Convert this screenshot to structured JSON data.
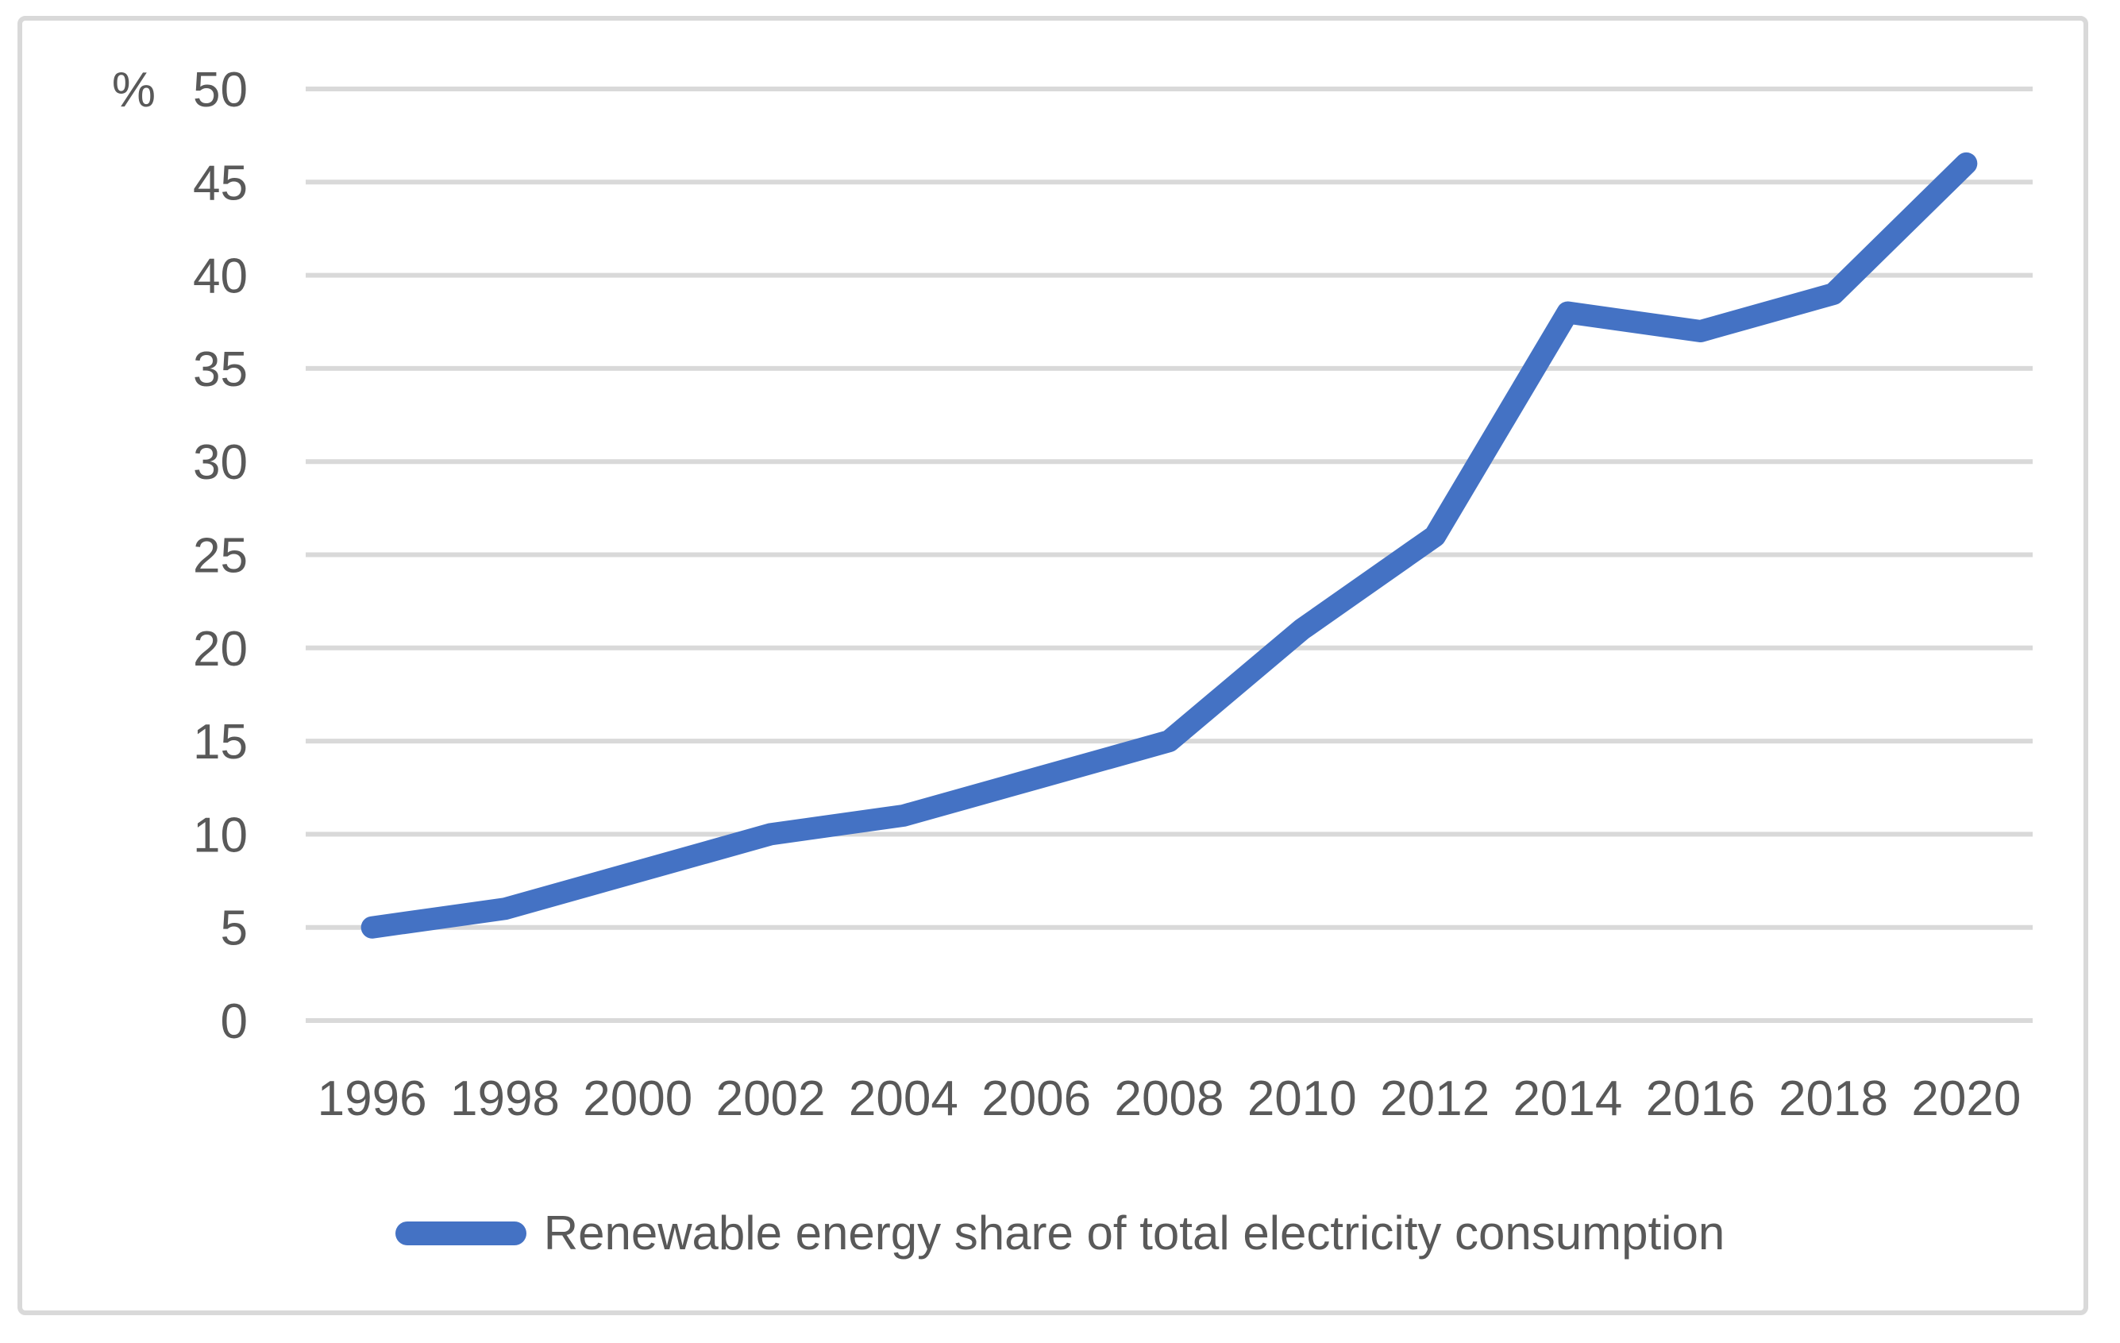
{
  "chart_data": {
    "type": "line",
    "title": "",
    "ylabel": "%",
    "categories": [
      "1996",
      "1998",
      "2000",
      "2002",
      "2004",
      "2006",
      "2008",
      "2010",
      "2012",
      "2014",
      "2016",
      "2018",
      "2020"
    ],
    "series": [
      {
        "name": "Renewable energy share of total electricity consumption",
        "values": [
          5,
          6,
          8,
          10,
          11,
          13,
          15,
          21,
          26,
          38,
          37,
          39,
          46
        ]
      }
    ],
    "ylim": [
      0,
      50
    ],
    "yticks": [
      0,
      5,
      10,
      15,
      20,
      25,
      30,
      35,
      40,
      45,
      50
    ],
    "grid": "horizontal-only",
    "legend_position": "bottom"
  },
  "colors": {
    "line": "#4472C4",
    "grid": "#D9D9D9",
    "frame_border": "#D9D9D9",
    "text": "#595959",
    "background": "#FFFFFF"
  }
}
